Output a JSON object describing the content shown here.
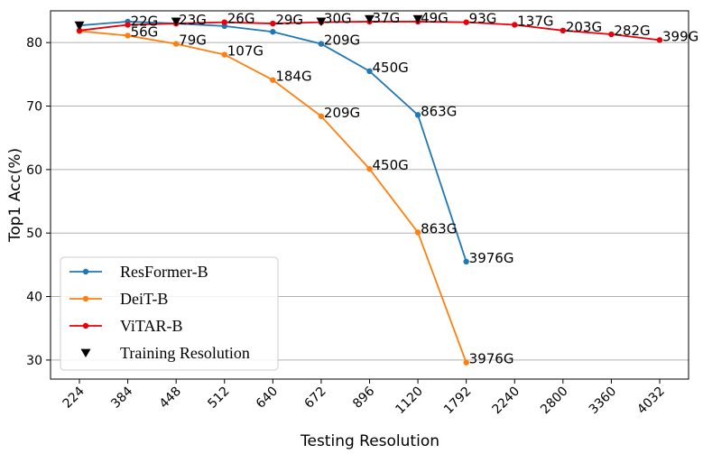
{
  "chart_data": {
    "type": "line",
    "xlabel": "Testing Resolution",
    "ylabel": "Top1 Acc(%)",
    "categories": [
      "224",
      "384",
      "448",
      "512",
      "640",
      "672",
      "896",
      "1120",
      "1792",
      "2240",
      "2800",
      "3360",
      "4032"
    ],
    "ylim": [
      27,
      85
    ],
    "yticks": [
      30,
      40,
      50,
      60,
      70,
      80
    ],
    "grid": true,
    "legend": "lower left",
    "series": [
      {
        "name": "ResFormer-B",
        "color": "#1f77b4",
        "marker": "circle",
        "values": [
          82.7,
          83.3,
          83.0,
          82.6,
          81.7,
          79.8,
          75.5,
          68.6,
          45.5,
          null,
          null,
          null,
          null
        ],
        "labels": [
          null,
          null,
          null,
          null,
          null,
          "209G",
          "450G",
          "863G",
          "3976G",
          null,
          null,
          null,
          null
        ]
      },
      {
        "name": "DeiT-B",
        "color": "#ff7f0e",
        "marker": "circle",
        "values": [
          81.8,
          81.1,
          79.8,
          78.1,
          74.1,
          68.4,
          60.1,
          50.1,
          29.6,
          null,
          null,
          null,
          null
        ],
        "labels": [
          null,
          "56G",
          "79G",
          "107G",
          "184G",
          "209G",
          "450G",
          "863G",
          "3976G",
          null,
          null,
          null,
          null
        ]
      },
      {
        "name": "ViTAR-B",
        "color": "#e8000b",
        "marker": "circle",
        "values": [
          81.9,
          82.8,
          83.0,
          83.2,
          83.0,
          83.2,
          83.3,
          83.3,
          83.2,
          82.8,
          81.9,
          81.3,
          80.4
        ],
        "labels": [
          null,
          "22G",
          "23G",
          "26G",
          "29G",
          "30G",
          "37G",
          "49G",
          "93G",
          "137G",
          "203G",
          "282G",
          "399G"
        ]
      },
      {
        "name": "Training Resolution",
        "color": "#000000",
        "marker": "triangle-down",
        "line": false,
        "values": [
          82.7,
          null,
          83.3,
          null,
          null,
          83.3,
          83.7,
          83.7,
          null,
          null,
          null,
          null,
          null
        ]
      }
    ]
  }
}
